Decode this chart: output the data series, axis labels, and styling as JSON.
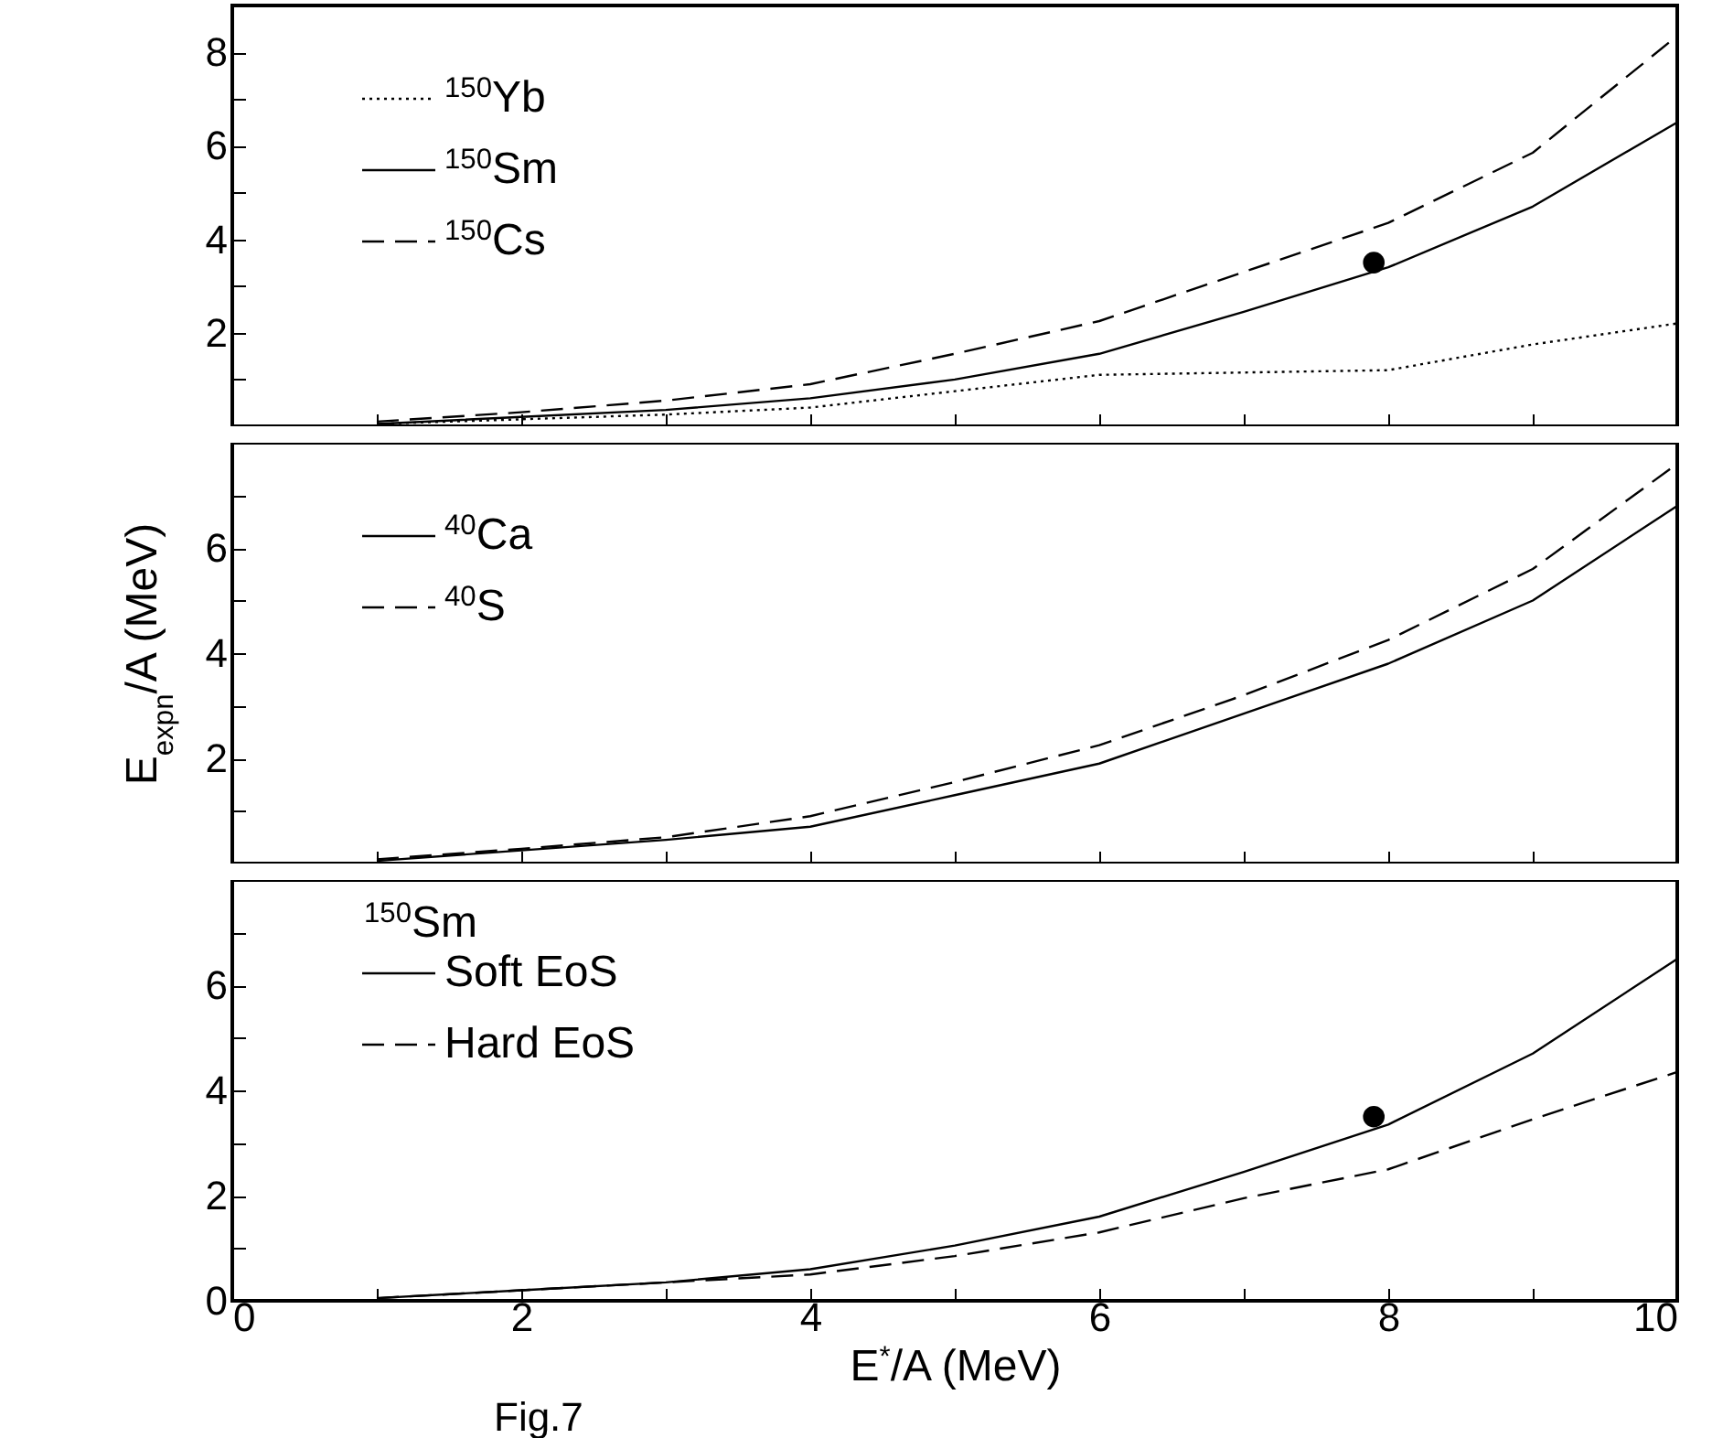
{
  "chart_data": [
    {
      "type": "line",
      "xlim": [
        0,
        10
      ],
      "xticks": [
        0,
        {
          "value": 1,
          "label": null
        },
        2,
        {
          "value": 3,
          "label": null
        },
        4,
        {
          "value": 5,
          "label": null
        },
        6,
        {
          "value": 7,
          "label": null
        },
        8,
        {
          "value": 9,
          "label": null
        },
        10
      ],
      "ylim": [
        0,
        9
      ],
      "yticks": [
        {
          "value": 1,
          "label": null
        },
        2,
        {
          "value": 3,
          "label": null
        },
        4,
        {
          "value": 5,
          "label": null
        },
        6,
        {
          "value": 7,
          "label": null
        },
        8
      ],
      "tick_labels": "y",
      "legend": "top left",
      "grid": false,
      "x": [
        1,
        2,
        3,
        4,
        5,
        6,
        7,
        8,
        9,
        10
      ],
      "series": [
        {
          "name": "$^{150}$Yb",
          "color": "#000000",
          "line_style": "dotted",
          "values": [
            0.05,
            0.15,
            0.25,
            0.4,
            0.75,
            1.1,
            1.15,
            1.2,
            1.75,
            2.2
          ]
        },
        {
          "name": "$^{150}$Sm",
          "color": "#000000",
          "line_style": "solid",
          "values": [
            0.05,
            0.2,
            0.35,
            0.6,
            1.0,
            1.55,
            2.45,
            3.4,
            4.7,
            6.5
          ]
        },
        {
          "name": "$^{150}$Cs",
          "color": "#000000",
          "line_style": "dashed",
          "values": [
            0.1,
            0.3,
            0.55,
            0.9,
            1.55,
            2.25,
            3.3,
            4.35,
            5.85,
            8.35
          ]
        },
        {
          "type": "scatter",
          "marker": "circle",
          "color": "#000000",
          "x": [
            7.9
          ],
          "values": [
            3.5
          ]
        }
      ]
    },
    {
      "type": "line",
      "xlim": [
        0,
        10
      ],
      "xticks": [
        0,
        {
          "value": 1,
          "label": null
        },
        2,
        {
          "value": 3,
          "label": null
        },
        4,
        {
          "value": 5,
          "label": null
        },
        6,
        {
          "value": 7,
          "label": null
        },
        8,
        {
          "value": 9,
          "label": null
        },
        10
      ],
      "ylim": [
        0,
        8
      ],
      "yticks": [
        {
          "value": 1,
          "label": null
        },
        2,
        {
          "value": 3,
          "label": null
        },
        4,
        {
          "value": 5,
          "label": null
        },
        6,
        {
          "value": 7,
          "label": null
        }
      ],
      "tick_labels": "y",
      "legend": "top left",
      "grid": false,
      "ylabel": "E$_{expn}$/A (MeV)",
      "x": [
        1,
        2,
        3,
        4,
        5,
        6,
        7,
        8,
        9,
        10
      ],
      "series": [
        {
          "name": "$^{40}$Ca",
          "color": "#000000",
          "line_style": "solid",
          "values": [
            0.05,
            0.25,
            0.45,
            0.7,
            1.3,
            1.9,
            2.85,
            3.8,
            5.0,
            6.8
          ]
        },
        {
          "name": "$^{40}$S",
          "color": "#000000",
          "line_style": "dashed",
          "values": [
            0.08,
            0.28,
            0.5,
            0.9,
            1.55,
            2.25,
            3.2,
            4.25,
            5.6,
            7.6
          ]
        }
      ]
    },
    {
      "type": "line",
      "xlim": [
        0,
        10
      ],
      "xticks": [
        0,
        {
          "value": 1,
          "label": null
        },
        2,
        {
          "value": 3,
          "label": null
        },
        4,
        {
          "value": 5,
          "label": null
        },
        6,
        {
          "value": 7,
          "label": null
        },
        8,
        {
          "value": 9,
          "label": null
        },
        10
      ],
      "ylim": [
        0,
        8
      ],
      "yticks": [
        0,
        {
          "value": 1,
          "label": null
        },
        2,
        {
          "value": 3,
          "label": null
        },
        4,
        {
          "value": 5,
          "label": null
        },
        6,
        {
          "value": 7,
          "label": null
        }
      ],
      "legend": "top left",
      "grid": false,
      "xlabel": "E$^{*}$/A (MeV)",
      "annotations": [
        "$^{150}$Sm",
        "Fig.7"
      ],
      "x": [
        1,
        2,
        3,
        4,
        5,
        6,
        7,
        8,
        9,
        10
      ],
      "series": [
        {
          "name": "Soft EoS",
          "color": "#000000",
          "line_style": "solid",
          "values": [
            0.05,
            0.2,
            0.35,
            0.6,
            1.05,
            1.6,
            2.45,
            3.35,
            4.7,
            6.5
          ]
        },
        {
          "name": "Hard EoS",
          "color": "#000000",
          "line_style": "dashed",
          "values": [
            0.05,
            0.2,
            0.35,
            0.5,
            0.85,
            1.3,
            1.95,
            2.5,
            3.45,
            4.35
          ]
        },
        {
          "type": "scatter",
          "marker": "circle",
          "color": "#000000",
          "x": [
            7.9
          ],
          "values": [
            3.5
          ]
        }
      ]
    }
  ]
}
